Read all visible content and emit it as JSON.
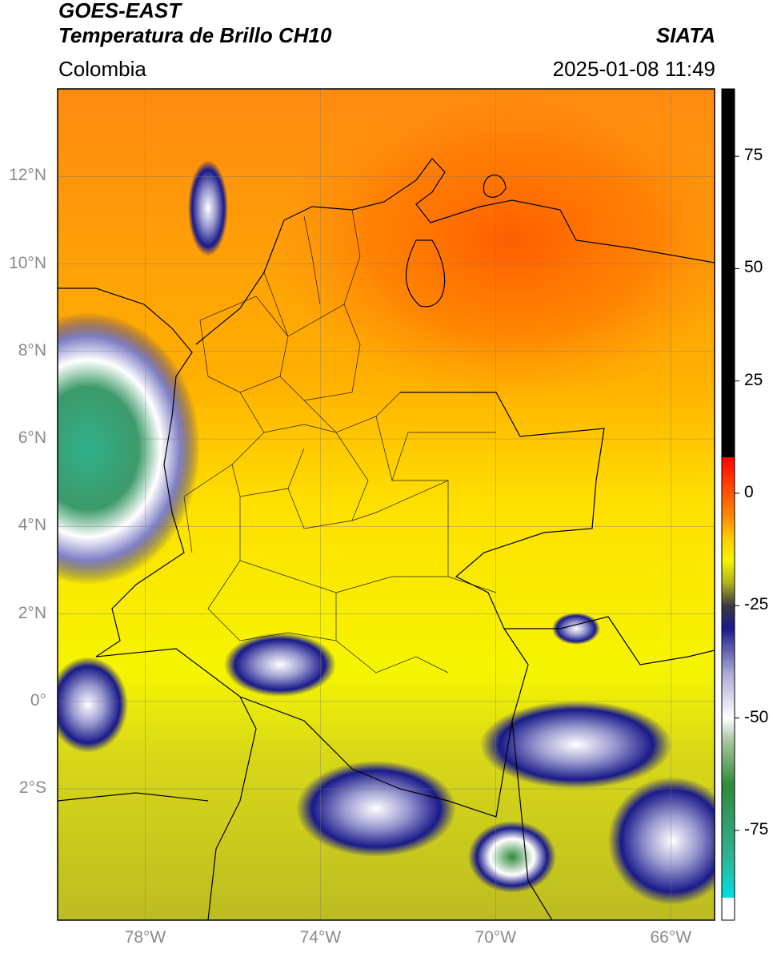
{
  "header": {
    "satellite": "GOES-EAST",
    "product": "Temperatura de Brillo CH10",
    "brand": "SIATA",
    "region": "Colombia",
    "datetime": "2025-01-08 11:49"
  },
  "map": {
    "lon_range": [
      -80,
      -65
    ],
    "lat_range": [
      -5,
      14
    ],
    "lat_ticks": [
      {
        "value": 12,
        "label": "12°N"
      },
      {
        "value": 10,
        "label": "10°N"
      },
      {
        "value": 8,
        "label": "8°N"
      },
      {
        "value": 6,
        "label": "6°N"
      },
      {
        "value": 4,
        "label": "4°N"
      },
      {
        "value": 2,
        "label": "2°N"
      },
      {
        "value": 0,
        "label": "0°"
      },
      {
        "value": -2,
        "label": "2°S"
      }
    ],
    "lon_ticks": [
      {
        "value": -78,
        "label": "78°W"
      },
      {
        "value": -74,
        "label": "74°W"
      },
      {
        "value": -70,
        "label": "70°W"
      },
      {
        "value": -66,
        "label": "66°W"
      }
    ],
    "grid": true
  },
  "colorbar": {
    "range": [
      -95,
      90
    ],
    "ticks": [
      {
        "value": 75,
        "label": "75"
      },
      {
        "value": 50,
        "label": "50"
      },
      {
        "value": 25,
        "label": "25"
      },
      {
        "value": 0,
        "label": "0"
      },
      {
        "value": -25,
        "label": "-25"
      },
      {
        "value": -50,
        "label": "-50"
      },
      {
        "value": -75,
        "label": "-75"
      }
    ],
    "stops": [
      {
        "value": -95,
        "color": "#ffffff"
      },
      {
        "value": -90,
        "color": "#ffffff"
      },
      {
        "value": -90,
        "color": "#00e0e0"
      },
      {
        "value": -80,
        "color": "#30b090"
      },
      {
        "value": -65,
        "color": "#2e8a3a"
      },
      {
        "value": -55,
        "color": "#a9c7a0"
      },
      {
        "value": -50,
        "color": "#ffffff"
      },
      {
        "value": -40,
        "color": "#aaaad6"
      },
      {
        "value": -30,
        "color": "#1a1a8a"
      },
      {
        "value": -25,
        "color": "#3a3a40"
      },
      {
        "value": -20,
        "color": "#b0b020"
      },
      {
        "value": -15,
        "color": "#f5f500"
      },
      {
        "value": -10,
        "color": "#ffcc00"
      },
      {
        "value": -5,
        "color": "#ff8800"
      },
      {
        "value": 5,
        "color": "#ff2200"
      },
      {
        "value": 8,
        "color": "#ff0000"
      },
      {
        "value": 8,
        "color": "#000000"
      },
      {
        "value": 90,
        "color": "#000000"
      }
    ]
  }
}
